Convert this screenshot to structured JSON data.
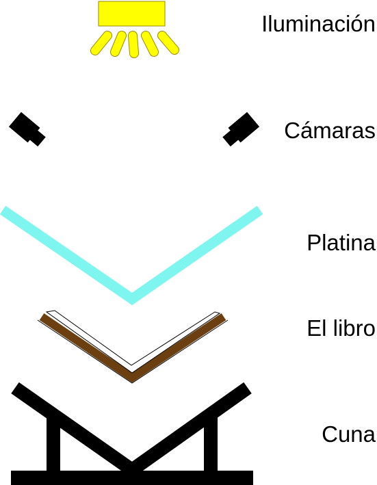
{
  "labels": {
    "illumination": "Iluminación",
    "cameras": "Cámaras",
    "platen": "Platina",
    "book": "El libro",
    "cradle": "Cuna"
  },
  "colors": {
    "lamp": "#ffff00",
    "lamp_outline": "#9c8a00",
    "platen": "#7ff5f0",
    "book_cover": "#6b3f10",
    "book_pages": "#ffffff",
    "ink": "#000000"
  }
}
